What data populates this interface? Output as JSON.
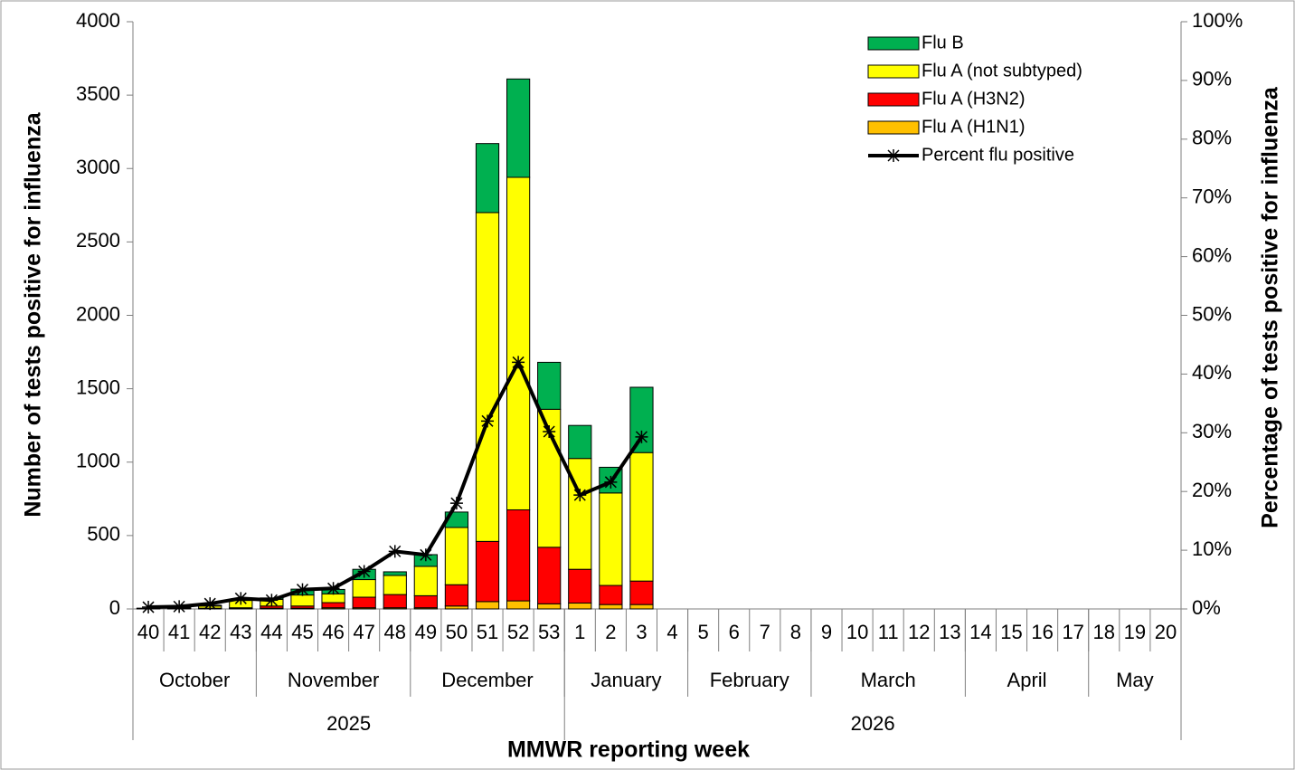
{
  "chart_data": {
    "type": "stacked-bar-line",
    "y_label": "Number of tests positive for influenza",
    "y2_label": "Percentage  of  tests  positive for influenza",
    "x_label": "MMWR reporting week",
    "categories": [
      "40",
      "41",
      "42",
      "43",
      "44",
      "45",
      "46",
      "47",
      "48",
      "49",
      "50",
      "51",
      "52",
      "53",
      "1",
      "2",
      "3",
      "4",
      "5",
      "6",
      "7",
      "8",
      "9",
      "10",
      "11",
      "12",
      "13",
      "14",
      "15",
      "16",
      "17",
      "18",
      "19",
      "20"
    ],
    "months": [
      {
        "name": "October",
        "span": 4
      },
      {
        "name": "November",
        "span": 5
      },
      {
        "name": "December",
        "span": 5
      },
      {
        "name": "January",
        "span": 4
      },
      {
        "name": "February",
        "span": 4
      },
      {
        "name": "March",
        "span": 5
      },
      {
        "name": "April",
        "span": 4
      },
      {
        "name": "May",
        "span": 3
      }
    ],
    "years": [
      {
        "name": "2025",
        "span": 14
      },
      {
        "name": "2026",
        "span": 20
      }
    ],
    "series": [
      {
        "name": "Flu A (H1N1)",
        "color": "#ffc000",
        "kind": "bar",
        "values": [
          1,
          1,
          2,
          3,
          5,
          5,
          8,
          8,
          8,
          8,
          20,
          50,
          55,
          35,
          40,
          30,
          30,
          null,
          null,
          null,
          null,
          null,
          null,
          null,
          null,
          null,
          null,
          null,
          null,
          null,
          null,
          null,
          null,
          null
        ]
      },
      {
        "name": "Flu A (H3N2)",
        "color": "#ff0000",
        "kind": "bar",
        "values": [
          1,
          2,
          3,
          5,
          15,
          15,
          35,
          72,
          90,
          82,
          145,
          410,
          620,
          385,
          230,
          130,
          160,
          null,
          null,
          null,
          null,
          null,
          null,
          null,
          null,
          null,
          null,
          null,
          null,
          null,
          null,
          null,
          null,
          null
        ]
      },
      {
        "name": "Flu A (not subtyped)",
        "color": "#ffff00",
        "kind": "bar",
        "values": [
          2,
          5,
          15,
          50,
          45,
          75,
          60,
          120,
          130,
          200,
          390,
          2240,
          2265,
          940,
          755,
          630,
          875,
          null,
          null,
          null,
          null,
          null,
          null,
          null,
          null,
          null,
          null,
          null,
          null,
          null,
          null,
          null,
          null,
          null
        ]
      },
      {
        "name": "Flu B",
        "color": "#00b050",
        "kind": "bar",
        "values": [
          1,
          2,
          5,
          7,
          10,
          40,
          30,
          70,
          25,
          80,
          105,
          470,
          670,
          320,
          225,
          175,
          445,
          null,
          null,
          null,
          null,
          null,
          null,
          null,
          null,
          null,
          null,
          null,
          null,
          null,
          null,
          null,
          null,
          null
        ]
      },
      {
        "name": "Percent flu positive",
        "color": "#000000",
        "kind": "line",
        "axis": "y2",
        "values": [
          0.3,
          0.4,
          0.9,
          1.8,
          1.5,
          3.3,
          3.5,
          6.4,
          9.8,
          9.2,
          18.0,
          32.0,
          42.0,
          30.2,
          19.4,
          21.6,
          29.3,
          null,
          null,
          null,
          null,
          null,
          null,
          null,
          null,
          null,
          null,
          null,
          null,
          null,
          null,
          null,
          null,
          null
        ]
      }
    ],
    "ylim": [
      0,
      4000
    ],
    "yticks": [
      0,
      500,
      1000,
      1500,
      2000,
      2500,
      3000,
      3500,
      4000
    ],
    "y2lim": [
      0,
      100
    ],
    "y2ticks": [
      {
        "value": 0,
        "label": "0%"
      },
      {
        "value": 10,
        "label": "10%"
      },
      {
        "value": 20,
        "label": "20%"
      },
      {
        "value": 30,
        "label": "30%"
      },
      {
        "value": 40,
        "label": "40%"
      },
      {
        "value": 50,
        "label": "50%"
      },
      {
        "value": 60,
        "label": "60%"
      },
      {
        "value": 70,
        "label": "70%"
      },
      {
        "value": 80,
        "label": "80%"
      },
      {
        "value": 90,
        "label": "90%"
      },
      {
        "value": 100,
        "label": "100%"
      }
    ],
    "legend": "top-right"
  }
}
